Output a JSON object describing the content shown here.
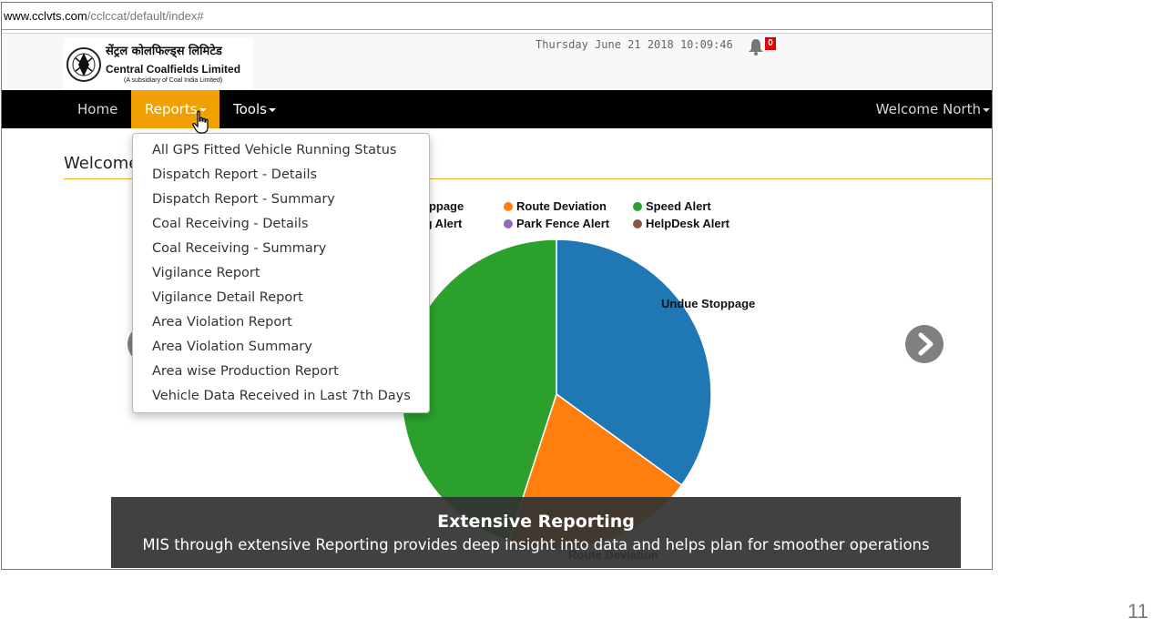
{
  "browser": {
    "url_domain": "www.cclvts.com",
    "url_path": "/cclccat/default/index#"
  },
  "header": {
    "logo_hindi": "सेंट्रल कोलफिल्ड्स लिमिटेड",
    "logo_english": "Central Coalfields Limited",
    "logo_subtitle": "(A subsidiary of Coal India Limited)",
    "datetime": "Thursday June 21 2018 10:09:46",
    "notification_count": "0"
  },
  "navbar": {
    "home": "Home",
    "reports": "Reports",
    "tools": "Tools",
    "welcome": "Welcome North"
  },
  "page": {
    "welcome_title": "Welcome"
  },
  "reports_menu": {
    "items": [
      "All GPS Fitted Vehicle Running Status",
      "Dispatch Report - Details",
      "Dispatch Report - Summary",
      "Coal Receiving - Details",
      "Coal Receiving - Summary",
      "Vigilance Report",
      "Vigilance Detail Report",
      "Area Violation Report",
      "Area Violation Summary",
      "Area wise Production Report",
      "Vehicle Data Received in Last 7th Days"
    ]
  },
  "chart_data": {
    "type": "pie",
    "legend": [
      {
        "label": "Stoppage",
        "color": "#1f77b4"
      },
      {
        "label": "Route Deviation",
        "color": "#ff7f0e"
      },
      {
        "label": "Speed Alert",
        "color": "#2ca02c"
      },
      {
        "label": "ring Alert",
        "color": "#d62728"
      },
      {
        "label": "Park Fence Alert",
        "color": "#9467bd"
      },
      {
        "label": "HelpDesk Alert",
        "color": "#8c564b"
      }
    ],
    "slices": [
      {
        "label": "Undue Stoppage",
        "value": 35,
        "color": "#1f77b4"
      },
      {
        "label": "Route Deviation",
        "value": 20,
        "color": "#ff7f0e"
      },
      {
        "label": "Speed Alert",
        "value": 45,
        "color": "#2ca02c"
      }
    ]
  },
  "slide_caption": {
    "title": "Extensive Reporting",
    "text": "MIS through extensive Reporting provides deep insight into data and helps plan for smoother operations"
  },
  "slide_number": "11"
}
